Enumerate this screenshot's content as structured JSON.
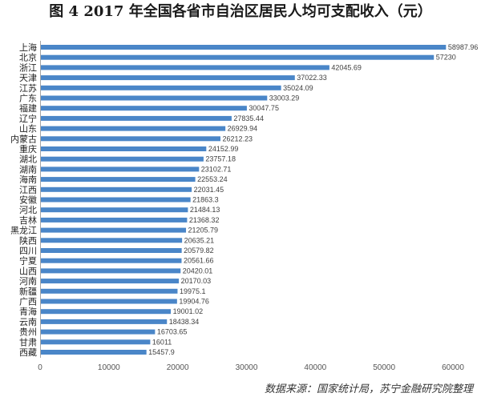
{
  "chart_data": {
    "type": "bar",
    "orientation": "horizontal",
    "title": "图 4 2017 年全国各省市自治区居民人均可支配收入（元）",
    "categories": [
      "上海",
      "北京",
      "浙江",
      "天津",
      "江苏",
      "广东",
      "福建",
      "辽宁",
      "山东",
      "内蒙古",
      "重庆",
      "湖北",
      "湖南",
      "海南",
      "江西",
      "安徽",
      "河北",
      "吉林",
      "黑龙江",
      "陕西",
      "四川",
      "宁夏",
      "山西",
      "河南",
      "新疆",
      "广西",
      "青海",
      "云南",
      "贵州",
      "甘肃",
      "西藏"
    ],
    "values": [
      58987.96,
      57230,
      42045.69,
      37022.33,
      35024.09,
      33003.29,
      30047.75,
      27835.44,
      26929.94,
      26212.23,
      24152.99,
      23757.18,
      23102.71,
      22553.24,
      22031.45,
      21863.3,
      21484.13,
      21368.32,
      21205.79,
      20635.21,
      20579.82,
      20561.66,
      20420.01,
      20170.03,
      19975.1,
      19904.76,
      19001.02,
      18438.34,
      16703.65,
      16011,
      15457.9
    ],
    "xlim": [
      0,
      60000
    ],
    "xticks": [
      0,
      10000,
      20000,
      30000,
      40000,
      50000,
      60000
    ],
    "grid": false,
    "data_labels": true,
    "bar_color": "#4a86c8"
  },
  "source_note": "数据来源：国家统计局，苏宁金融研究院整理"
}
